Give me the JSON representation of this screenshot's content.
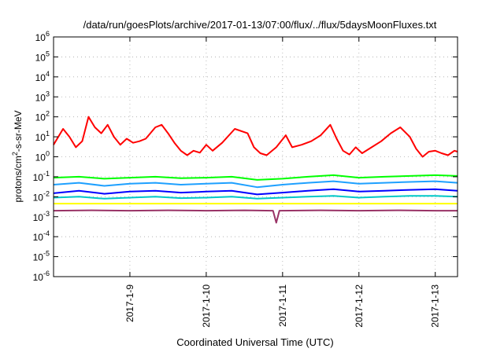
{
  "chart_data": {
    "type": "line",
    "title": "/data/run/goesPlots/archive/2017-01-13/07:00/flux/../flux/5daysMoonFluxes.txt",
    "xlabel": "Coordinated Universal Time (UTC)",
    "ylabel": {
      "prefix": "protons/cm",
      "sup": "2",
      "suffix": "-s-sr-MeV"
    },
    "y_scale": "log",
    "ylim": [
      1e-06,
      1000000.0
    ],
    "y_ticks": [
      {
        "value": 1e-06,
        "base": "10",
        "exp": "-6"
      },
      {
        "value": 1e-05,
        "base": "10",
        "exp": "-5"
      },
      {
        "value": 0.0001,
        "base": "10",
        "exp": "-4"
      },
      {
        "value": 0.001,
        "base": "10",
        "exp": "-3"
      },
      {
        "value": 0.01,
        "base": "10",
        "exp": "-2"
      },
      {
        "value": 0.1,
        "base": "10",
        "exp": "-1"
      },
      {
        "value": 1,
        "base": "10",
        "exp": "0"
      },
      {
        "value": 10,
        "base": "10",
        "exp": "1"
      },
      {
        "value": 100,
        "base": "10",
        "exp": "2"
      },
      {
        "value": 1000,
        "base": "10",
        "exp": "3"
      },
      {
        "value": 10000,
        "base": "10",
        "exp": "4"
      },
      {
        "value": 100000,
        "base": "10",
        "exp": "5"
      },
      {
        "value": 1000000,
        "base": "10",
        "exp": "6"
      }
    ],
    "xlim": [
      "2017-01-08T00:00",
      "2017-01-13T07:00"
    ],
    "x_ticks": [
      "2017-1-9",
      "2017-1-10",
      "2017-1-11",
      "2017-1-12",
      "2017-1-13"
    ],
    "grid": true,
    "series": [
      {
        "color": "#ff0000",
        "x": [
          "2017-01-08T00:00",
          "2017-01-08T03:00",
          "2017-01-08T05:00",
          "2017-01-08T07:00",
          "2017-01-08T09:00",
          "2017-01-08T11:00",
          "2017-01-08T13:00",
          "2017-01-08T15:00",
          "2017-01-08T17:00",
          "2017-01-08T19:00",
          "2017-01-08T21:00",
          "2017-01-08T23:00",
          "2017-01-09T01:00",
          "2017-01-09T03:00",
          "2017-01-09T05:00",
          "2017-01-09T08:00",
          "2017-01-09T10:00",
          "2017-01-09T12:00",
          "2017-01-09T14:00",
          "2017-01-09T16:00",
          "2017-01-09T18:00",
          "2017-01-09T20:00",
          "2017-01-09T22:00",
          "2017-01-10T00:00",
          "2017-01-10T02:00",
          "2017-01-10T05:00",
          "2017-01-10T09:00",
          "2017-01-10T13:00",
          "2017-01-10T15:00",
          "2017-01-10T17:00",
          "2017-01-10T19:00",
          "2017-01-10T22:00",
          "2017-01-11T01:00",
          "2017-01-11T03:00",
          "2017-01-11T06:00",
          "2017-01-11T09:00",
          "2017-01-11T12:00",
          "2017-01-11T15:00",
          "2017-01-11T17:00",
          "2017-01-11T19:00",
          "2017-01-11T21:00",
          "2017-01-11T23:00",
          "2017-01-12T01:00",
          "2017-01-12T04:00",
          "2017-01-12T07:00",
          "2017-01-12T10:00",
          "2017-01-12T13:00",
          "2017-01-12T16:00",
          "2017-01-12T18:00",
          "2017-01-12T20:00",
          "2017-01-12T22:00",
          "2017-01-13T00:00",
          "2017-01-13T02:00",
          "2017-01-13T04:00",
          "2017-01-13T06:00",
          "2017-01-13T07:00"
        ],
        "y": [
          4,
          25,
          10,
          3,
          6,
          100,
          30,
          15,
          40,
          10,
          4,
          8,
          5,
          6,
          8,
          30,
          40,
          15,
          5,
          2,
          1.2,
          2,
          1.6,
          4,
          2,
          5,
          25,
          15,
          3,
          1.5,
          1.2,
          3,
          12,
          3,
          4,
          6,
          12,
          40,
          8,
          2,
          1.3,
          3,
          1.5,
          3,
          6,
          15,
          30,
          10,
          2.5,
          1,
          1.8,
          2,
          1.5,
          1.2,
          2,
          1.8
        ]
      },
      {
        "color": "#00ff00",
        "x": [
          "2017-01-08T00:00",
          "2017-01-08T08:00",
          "2017-01-08T16:00",
          "2017-01-09T00:00",
          "2017-01-09T08:00",
          "2017-01-09T16:00",
          "2017-01-10T00:00",
          "2017-01-10T08:00",
          "2017-01-10T16:00",
          "2017-01-11T00:00",
          "2017-01-11T08:00",
          "2017-01-11T16:00",
          "2017-01-12T00:00",
          "2017-01-12T08:00",
          "2017-01-12T16:00",
          "2017-01-13T00:00",
          "2017-01-13T07:00"
        ],
        "y": [
          0.09,
          0.1,
          0.08,
          0.09,
          0.1,
          0.085,
          0.09,
          0.1,
          0.07,
          0.08,
          0.1,
          0.12,
          0.09,
          0.1,
          0.11,
          0.12,
          0.11
        ]
      },
      {
        "color": "#1ea0ff",
        "x": [
          "2017-01-08T00:00",
          "2017-01-08T08:00",
          "2017-01-08T16:00",
          "2017-01-09T00:00",
          "2017-01-09T08:00",
          "2017-01-09T16:00",
          "2017-01-10T00:00",
          "2017-01-10T08:00",
          "2017-01-10T16:00",
          "2017-01-11T00:00",
          "2017-01-11T08:00",
          "2017-01-11T16:00",
          "2017-01-12T00:00",
          "2017-01-12T08:00",
          "2017-01-12T16:00",
          "2017-01-13T00:00",
          "2017-01-13T07:00"
        ],
        "y": [
          0.04,
          0.05,
          0.035,
          0.045,
          0.05,
          0.04,
          0.045,
          0.05,
          0.03,
          0.04,
          0.05,
          0.06,
          0.045,
          0.05,
          0.055,
          0.06,
          0.05
        ]
      },
      {
        "color": "#0000ff",
        "x": [
          "2017-01-08T00:00",
          "2017-01-08T08:00",
          "2017-01-08T16:00",
          "2017-01-09T00:00",
          "2017-01-09T08:00",
          "2017-01-09T16:00",
          "2017-01-10T00:00",
          "2017-01-10T08:00",
          "2017-01-10T16:00",
          "2017-01-11T00:00",
          "2017-01-11T08:00",
          "2017-01-11T16:00",
          "2017-01-12T00:00",
          "2017-01-12T08:00",
          "2017-01-12T16:00",
          "2017-01-13T00:00",
          "2017-01-13T07:00"
        ],
        "y": [
          0.015,
          0.02,
          0.014,
          0.018,
          0.02,
          0.016,
          0.018,
          0.02,
          0.013,
          0.016,
          0.02,
          0.024,
          0.018,
          0.02,
          0.022,
          0.024,
          0.02
        ]
      },
      {
        "color": "#00c8c8",
        "x": [
          "2017-01-08T00:00",
          "2017-01-08T08:00",
          "2017-01-08T16:00",
          "2017-01-09T00:00",
          "2017-01-09T08:00",
          "2017-01-09T16:00",
          "2017-01-10T00:00",
          "2017-01-10T08:00",
          "2017-01-10T16:00",
          "2017-01-11T00:00",
          "2017-01-11T08:00",
          "2017-01-11T16:00",
          "2017-01-12T00:00",
          "2017-01-12T08:00",
          "2017-01-12T16:00",
          "2017-01-13T00:00",
          "2017-01-13T07:00"
        ],
        "y": [
          0.009,
          0.01,
          0.008,
          0.009,
          0.01,
          0.0085,
          0.009,
          0.01,
          0.008,
          0.009,
          0.01,
          0.011,
          0.009,
          0.01,
          0.011,
          0.011,
          0.01
        ]
      },
      {
        "color": "#ffff00",
        "x": [
          "2017-01-08T00:00",
          "2017-01-09T00:00",
          "2017-01-10T00:00",
          "2017-01-11T00:00",
          "2017-01-12T00:00",
          "2017-01-13T00:00",
          "2017-01-13T07:00"
        ],
        "y": [
          0.0045,
          0.0045,
          0.0045,
          0.0045,
          0.0045,
          0.0045,
          0.0045
        ]
      },
      {
        "color": "#993366",
        "x": [
          "2017-01-08T00:00",
          "2017-01-08T12:00",
          "2017-01-09T00:00",
          "2017-01-09T12:00",
          "2017-01-10T00:00",
          "2017-01-10T12:00",
          "2017-01-10T21:00",
          "2017-01-10T22:00",
          "2017-01-10T23:00",
          "2017-01-11T12:00",
          "2017-01-12T00:00",
          "2017-01-12T12:00",
          "2017-01-13T00:00",
          "2017-01-13T07:00"
        ],
        "y": [
          0.002,
          0.0021,
          0.002,
          0.0021,
          0.002,
          0.0021,
          0.002,
          0.0005,
          0.002,
          0.0021,
          0.002,
          0.0021,
          0.002,
          0.002
        ]
      }
    ]
  }
}
